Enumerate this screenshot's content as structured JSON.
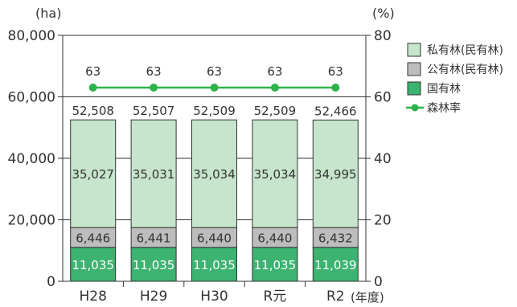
{
  "chart_data": {
    "type": "bar",
    "stacked": true,
    "categories": [
      "H28",
      "H29",
      "H30",
      "R元",
      "R2"
    ],
    "xlabel_suffix": "(年度)",
    "left_axis": {
      "unit": "(ha)",
      "ylim": [
        0,
        80000
      ],
      "ticks": [
        "0",
        "20,000",
        "40,000",
        "60,000",
        "80,000"
      ],
      "tick_values": [
        0,
        20000,
        40000,
        60000,
        80000
      ]
    },
    "right_axis": {
      "unit": "(%)",
      "ylim": [
        0,
        80
      ],
      "ticks": [
        "0",
        "20",
        "40",
        "60",
        "80"
      ],
      "tick_values": [
        0,
        20,
        40,
        60,
        80
      ]
    },
    "series": [
      {
        "name": "国有林",
        "color": "#3cb371",
        "values": [
          11035,
          11035,
          11035,
          11035,
          11039
        ],
        "labels": [
          "11,035",
          "11,035",
          "11,035",
          "11,035",
          "11,039"
        ]
      },
      {
        "name": "公有林(民有林)",
        "color": "#bdbdbd",
        "values": [
          6446,
          6441,
          6440,
          6440,
          6432
        ],
        "labels": [
          "6,446",
          "6,441",
          "6,440",
          "6,440",
          "6,432"
        ]
      },
      {
        "name": "私有林(民有林)",
        "color": "#c6e5cc",
        "values": [
          35027,
          35031,
          35034,
          35034,
          34995
        ],
        "labels": [
          "35,027",
          "35,031",
          "35,034",
          "35,034",
          "34,995"
        ]
      }
    ],
    "totals": [
      "52,508",
      "52,507",
      "52,509",
      "52,509",
      "52,466"
    ],
    "line_series": {
      "name": "森林率",
      "color": "#2db34a",
      "values": [
        63,
        63,
        63,
        63,
        63
      ],
      "labels": [
        "63",
        "63",
        "63",
        "63",
        "63"
      ]
    },
    "legend": {
      "placement": "right",
      "items": [
        {
          "label": "私有林(民有林)",
          "kind": "box",
          "color": "#c6e5cc"
        },
        {
          "label": "公有林(民有林)",
          "kind": "box",
          "color": "#bdbdbd"
        },
        {
          "label": "国有林",
          "kind": "box",
          "color": "#3cb371"
        },
        {
          "label": "森林率",
          "kind": "line",
          "color": "#2db34a"
        }
      ]
    },
    "grid": true
  }
}
